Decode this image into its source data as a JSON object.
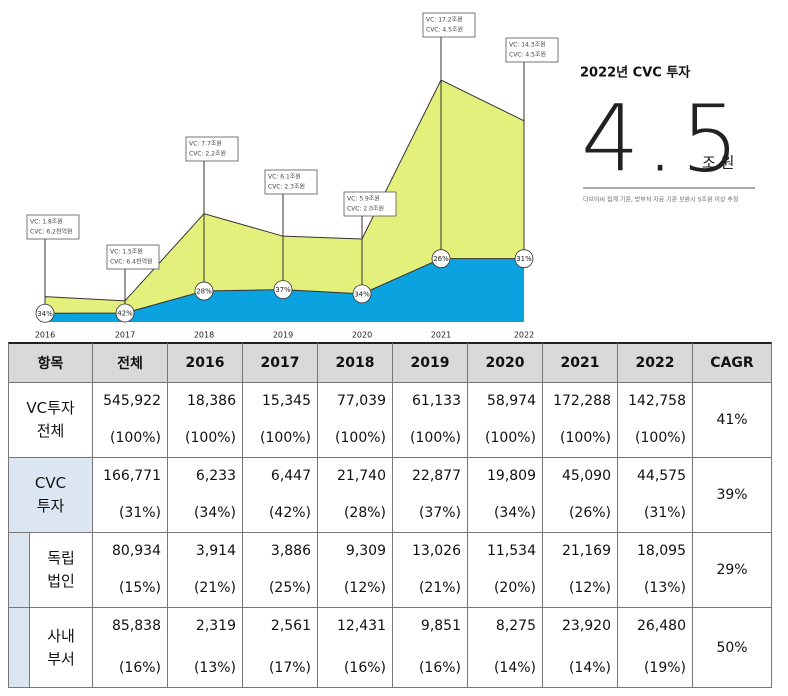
{
  "chart_data": {
    "type": "area",
    "categories": [
      "2016",
      "2017",
      "2018",
      "2019",
      "2020",
      "2021",
      "2022"
    ],
    "series": [
      {
        "color": "#e4f07c",
        "values": [
          1.8,
          1.5,
          7.7,
          6.1,
          5.9,
          17.2,
          14.3
        ],
        "value_labels": [
          "VC: 1.8조원",
          "VC: 1.5조원",
          "VC: 7.7조원",
          "VC: 6.1조원",
          "VC: 5.9조원",
          "VC: 17.2조원",
          "VC: 14.3조원"
        ]
      },
      {
        "color": "#0ba3df",
        "values": [
          0.62,
          0.64,
          2.2,
          2.3,
          2.0,
          4.5,
          4.5
        ],
        "value_labels": [
          "CVC: 6.2천억원",
          "CVC: 6.4천억원",
          "CVC: 2.2조원",
          "CVC: 2.3조원",
          "CVC: 2.0조원",
          "CVC: 4.5조원",
          "CVC: 4.5조원"
        ]
      }
    ],
    "shares": {
      "values": [
        34,
        42,
        28,
        37,
        34,
        26,
        31
      ],
      "value_labels": [
        "34%",
        "42%",
        "28%",
        "37%",
        "34%",
        "26%",
        "31%"
      ]
    }
  },
  "headline": {
    "title": "2022년 CVC 투자",
    "value": "4.5",
    "unit": "조 원",
    "note": "더브이씨 집계 기준, 방부처 자료 기준 보완시 5조원 이상 추정"
  },
  "table": {
    "header": [
      "항목",
      "전체",
      "2016",
      "2017",
      "2018",
      "2019",
      "2020",
      "2021",
      "2022",
      "CAGR"
    ],
    "rows": [
      {
        "label": [
          "VC투자",
          "전체"
        ],
        "cells": [
          [
            "545,922",
            "(100%)"
          ],
          [
            "18,386",
            "(100%)"
          ],
          [
            "15,345",
            "(100%)"
          ],
          [
            "77,039",
            "(100%)"
          ],
          [
            "61,133",
            "(100%)"
          ],
          [
            "58,974",
            "(100%)"
          ],
          [
            "172,288",
            "(100%)"
          ],
          [
            "142,758",
            "(100%)"
          ]
        ],
        "cagr": "41%"
      },
      {
        "label": [
          "CVC",
          "투자"
        ],
        "cells": [
          [
            "166,771",
            "(31%)"
          ],
          [
            "6,233",
            "(34%)"
          ],
          [
            "6,447",
            "(42%)"
          ],
          [
            "21,740",
            "(28%)"
          ],
          [
            "22,877",
            "(37%)"
          ],
          [
            "19,809",
            "(34%)"
          ],
          [
            "45,090",
            "(26%)"
          ],
          [
            "44,575",
            "(31%)"
          ]
        ],
        "cagr": "39%"
      },
      {
        "label": [
          "독립",
          "법인"
        ],
        "cells": [
          [
            "80,934",
            "(15%)"
          ],
          [
            "3,914",
            "(21%)"
          ],
          [
            "3,886",
            "(25%)"
          ],
          [
            "9,309",
            "(12%)"
          ],
          [
            "13,026",
            "(21%)"
          ],
          [
            "11,534",
            "(20%)"
          ],
          [
            "21,169",
            "(12%)"
          ],
          [
            "18,095",
            "(13%)"
          ]
        ],
        "cagr": "29%"
      },
      {
        "label": [
          "사내",
          "부서"
        ],
        "cells": [
          [
            "85,838",
            "(16%)"
          ],
          [
            "2,319",
            "(13%)"
          ],
          [
            "2,561",
            "(17%)"
          ],
          [
            "12,431",
            "(16%)"
          ],
          [
            "9,851",
            "(16%)"
          ],
          [
            "8,275",
            "(14%)"
          ],
          [
            "23,920",
            "(14%)"
          ],
          [
            "26,480",
            "(19%)"
          ]
        ],
        "cagr": "50%"
      }
    ]
  }
}
